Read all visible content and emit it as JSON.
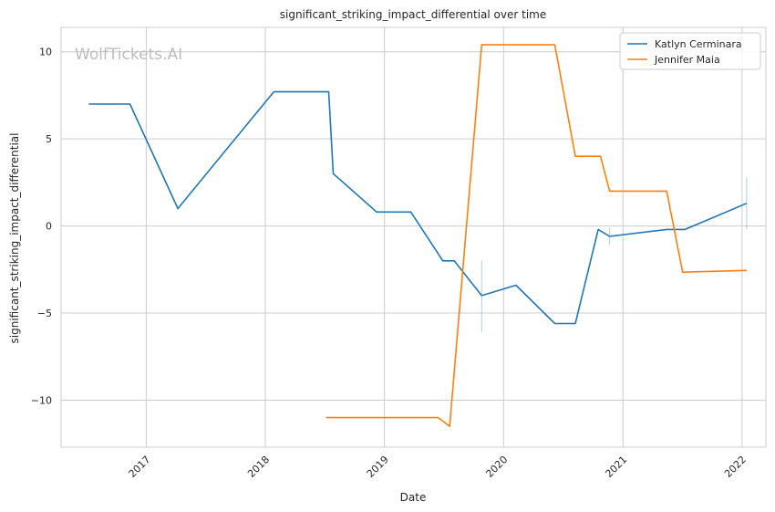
{
  "chart_data": {
    "type": "line",
    "title": "significant_striking_impact_differential over time",
    "xlabel": "Date",
    "ylabel": "significant_striking_impact_differential",
    "watermark": "WolfTickets.AI",
    "x_ticks": [
      "2017",
      "2018",
      "2019",
      "2020",
      "2021",
      "2022"
    ],
    "y_ticks": [
      {
        "value": 10,
        "label": "10"
      },
      {
        "value": 5,
        "label": "5"
      },
      {
        "value": 0,
        "label": "0"
      },
      {
        "value": -5,
        "label": "−5"
      },
      {
        "value": -10,
        "label": "−10"
      }
    ],
    "xlim": [
      "2016-04-15",
      "2022-03-15"
    ],
    "ylim": [
      -12.7,
      11.4
    ],
    "grid": true,
    "legend_position": "top-right",
    "series": [
      {
        "name": "Katlyn Cerminara",
        "color": "#1f77b4",
        "points": [
          {
            "x": "2016-07-09",
            "y": 7.0
          },
          {
            "x": "2016-11-12",
            "y": 7.0
          },
          {
            "x": "2017-04-08",
            "y": 1.0
          },
          {
            "x": "2018-01-27",
            "y": 7.7
          },
          {
            "x": "2018-07-14",
            "y": 7.7
          },
          {
            "x": "2018-07-28",
            "y": 3.0
          },
          {
            "x": "2018-12-08",
            "y": 0.8
          },
          {
            "x": "2019-03-23",
            "y": 0.8
          },
          {
            "x": "2019-06-29",
            "y": -2.0
          },
          {
            "x": "2019-08-03",
            "y": -2.0
          },
          {
            "x": "2019-10-26",
            "y": -4.0
          },
          {
            "x": "2020-02-08",
            "y": -3.4
          },
          {
            "x": "2020-06-06",
            "y": -5.6
          },
          {
            "x": "2020-08-08",
            "y": -5.6
          },
          {
            "x": "2020-10-17",
            "y": -0.2
          },
          {
            "x": "2020-11-21",
            "y": -0.6
          },
          {
            "x": "2021-05-15",
            "y": -0.2
          },
          {
            "x": "2021-07-10",
            "y": -0.2
          },
          {
            "x": "2022-01-15",
            "y": 1.3
          }
        ],
        "error_bars": [
          {
            "x": "2019-10-26",
            "low": -6.1,
            "high": -2.0
          },
          {
            "x": "2020-11-21",
            "low": -1.1,
            "high": -0.1
          },
          {
            "x": "2022-01-15",
            "low": -0.2,
            "high": 2.8
          }
        ]
      },
      {
        "name": "Jennifer Maia",
        "color": "#ff7f0e",
        "points": [
          {
            "x": "2018-07-06",
            "y": -11.0
          },
          {
            "x": "2019-06-15",
            "y": -11.0
          },
          {
            "x": "2019-07-20",
            "y": -11.5
          },
          {
            "x": "2019-10-26",
            "y": 10.4
          },
          {
            "x": "2020-06-06",
            "y": 10.4
          },
          {
            "x": "2020-08-08",
            "y": 4.0
          },
          {
            "x": "2020-10-24",
            "y": 4.0
          },
          {
            "x": "2020-11-21",
            "y": 2.0
          },
          {
            "x": "2021-05-15",
            "y": 2.0
          },
          {
            "x": "2021-07-03",
            "y": -2.65
          },
          {
            "x": "2022-01-15",
            "y": -2.55
          }
        ]
      }
    ]
  }
}
